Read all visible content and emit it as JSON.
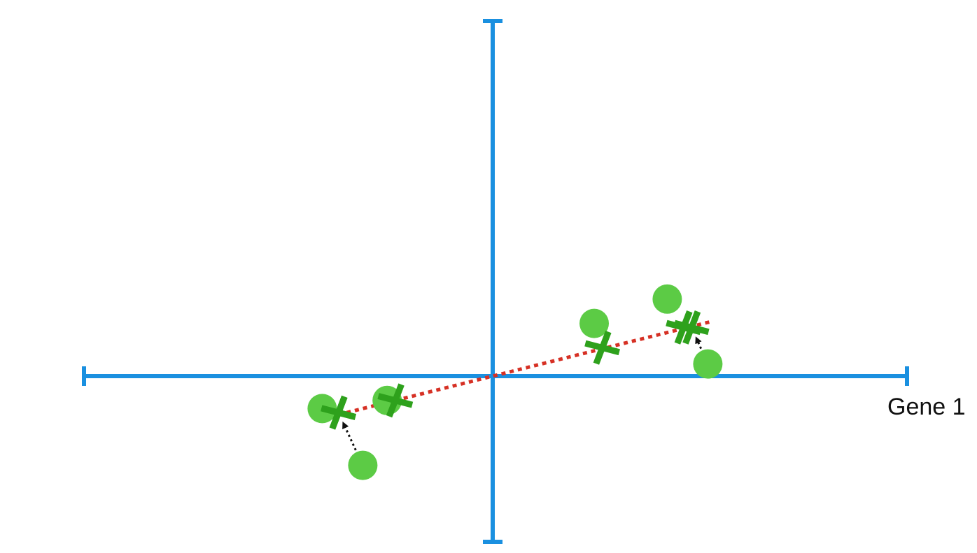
{
  "labels": {
    "x_axis": "Gene 1"
  },
  "colors": {
    "axis": "#1a90e0",
    "point": "#5ccb45",
    "projection": "#2ea11c",
    "fit_line": "#d63024",
    "arrow": "#111111"
  },
  "chart_data": {
    "type": "scatter",
    "xlabel": "Gene 1",
    "ylabel": "",
    "points": [
      {
        "x": -4.2,
        "y": -0.8
      },
      {
        "x": -2.6,
        "y": -0.6
      },
      {
        "x": -3.2,
        "y": -2.2
      },
      {
        "x": 2.5,
        "y": 1.3
      },
      {
        "x": 4.3,
        "y": 1.9
      },
      {
        "x": 5.3,
        "y": 0.3
      }
    ],
    "projections": [
      {
        "x": -3.8,
        "y": -0.9
      },
      {
        "x": -2.4,
        "y": -0.6
      },
      {
        "x": -3.8,
        "y": -0.9
      },
      {
        "x": 2.7,
        "y": 0.7
      },
      {
        "x": 4.7,
        "y": 1.2
      },
      {
        "x": 4.9,
        "y": 1.2
      }
    ],
    "arrows": [
      {
        "from": 2,
        "to": 2
      },
      {
        "from": 5,
        "to": 5
      }
    ],
    "fit_line": {
      "slope": 0.25,
      "x_range": [
        -4.2,
        5.4
      ]
    }
  }
}
